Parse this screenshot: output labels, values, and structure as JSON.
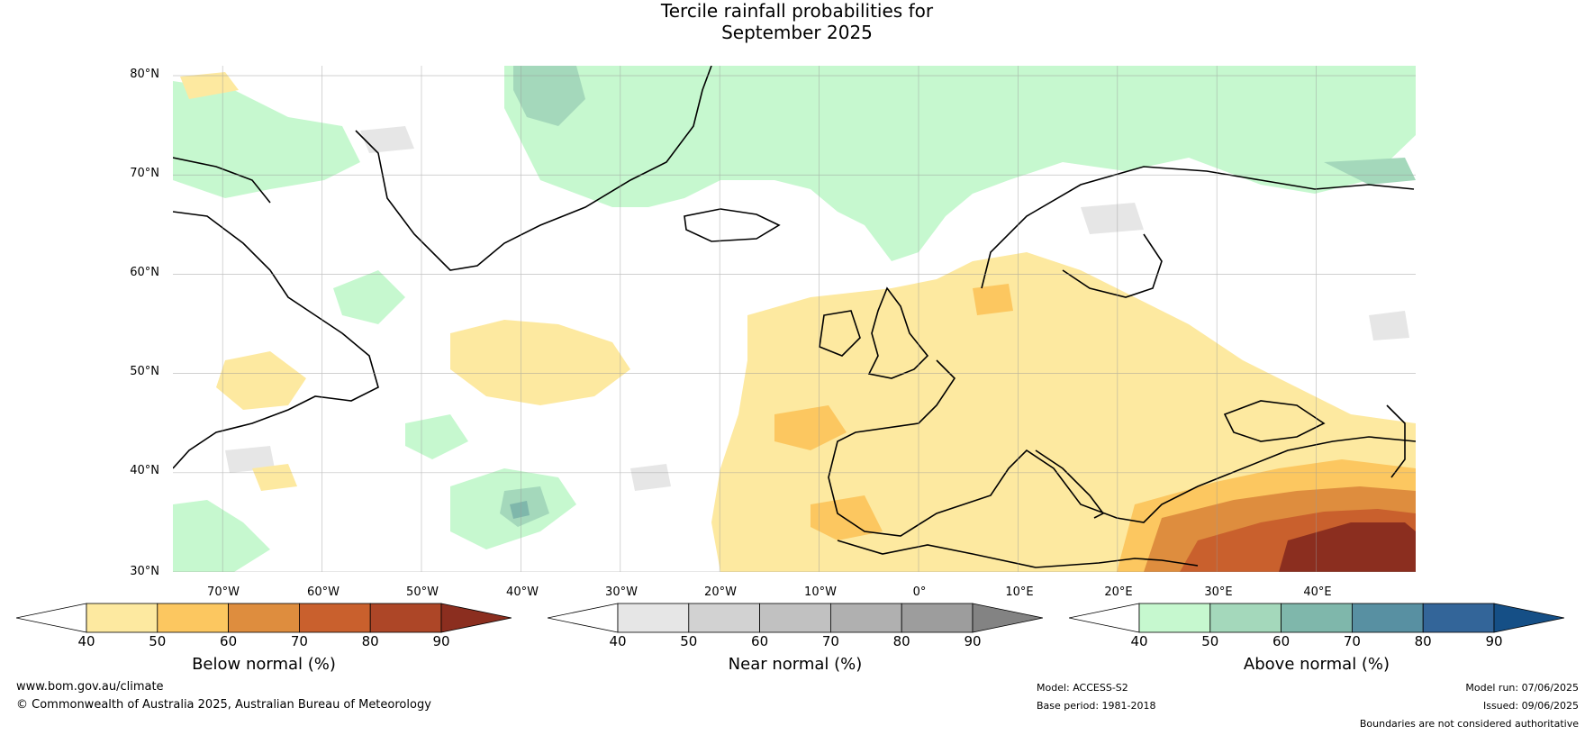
{
  "title": {
    "line1": "Tercile rainfall probabilities for",
    "line2": "September 2025"
  },
  "map": {
    "lat_labels": [
      "80°N",
      "70°N",
      "60°N",
      "50°N",
      "40°N",
      "30°N"
    ],
    "lon_labels": [
      "70°W",
      "60°W",
      "50°W",
      "40°W",
      "30°W",
      "20°W",
      "10°W",
      "0°",
      "10°E",
      "20°E",
      "30°E",
      "40°E"
    ],
    "lat_range": [
      30,
      81
    ],
    "lon_range": [
      -75,
      50
    ]
  },
  "colorbars": {
    "below": {
      "label": "Below normal (%)",
      "ticks": [
        "40",
        "50",
        "60",
        "70",
        "80",
        "90"
      ],
      "colors": [
        "#ffffff",
        "#fde9a0",
        "#fcc760",
        "#de8d3e",
        "#c9602d",
        "#ad4627",
        "#8b2e1f"
      ]
    },
    "near": {
      "label": "Near normal (%)",
      "ticks": [
        "40",
        "50",
        "60",
        "70",
        "80",
        "90"
      ],
      "colors": [
        "#ffffff",
        "#e6e6e6",
        "#d2d2d2",
        "#c1c1c1",
        "#b0b0b0",
        "#9d9d9d",
        "#838383"
      ]
    },
    "above": {
      "label": "Above normal (%)",
      "ticks": [
        "40",
        "50",
        "60",
        "70",
        "80",
        "90"
      ],
      "colors": [
        "#ffffff",
        "#c6f8cf",
        "#a4d8bb",
        "#7fb7ab",
        "#5890a2",
        "#336599",
        "#154f86"
      ]
    }
  },
  "footer": {
    "url": "www.bom.gov.au/climate",
    "copyright": "© Commonwealth of Australia 2025, Australian Bureau of Meteorology",
    "model": "Model: ACCESS-S2",
    "base_period": "Base period: 1981-2018",
    "model_run": "Model run: 07/06/2025",
    "issued": "Issued: 09/06/2025",
    "disclaimer": "Boundaries are not considered authoritative"
  }
}
